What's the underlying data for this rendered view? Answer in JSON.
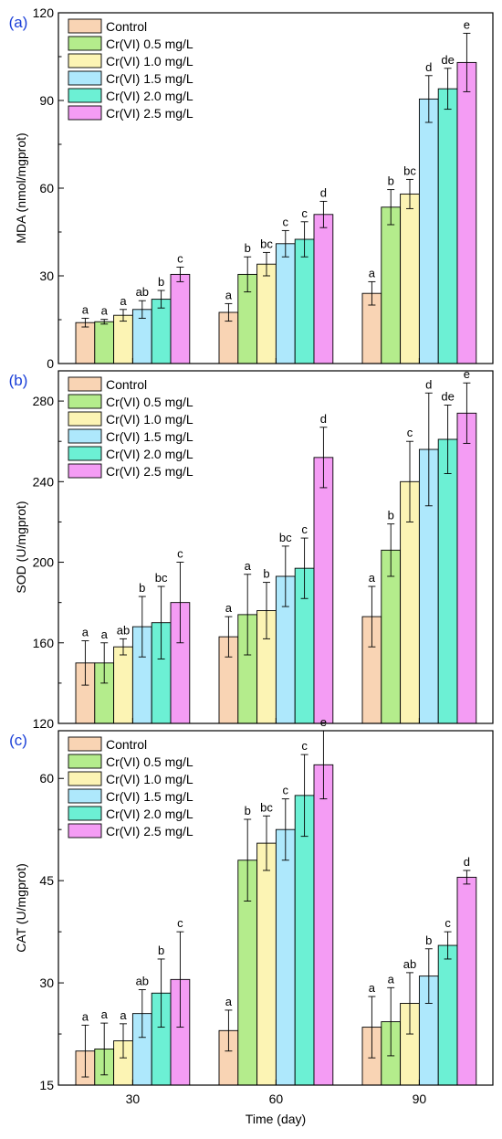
{
  "series_names": [
    "Control",
    "Cr(VI) 0.5 mg/L",
    "Cr(VI) 1.0 mg/L",
    "Cr(VI) 1.5 mg/L",
    "Cr(VI) 2.0 mg/L",
    "Cr(VI) 2.5 mg/L"
  ],
  "series_colors": [
    "#f9d4b4",
    "#b4ec8c",
    "#fcf4b4",
    "#aee8fc",
    "#6cf0d4",
    "#f49cf4"
  ],
  "xlabel": "Time (day)",
  "categories": [
    "30",
    "60",
    "90"
  ],
  "chart_data": [
    {
      "type": "bar",
      "panel_label": "(a)",
      "ylabel": "MDA (nmol/mgprot)",
      "ylim": [
        0,
        120
      ],
      "yticks": [
        "0",
        "30",
        "60",
        "90",
        "120"
      ],
      "categories": [
        "30",
        "60",
        "90"
      ],
      "series": [
        {
          "name": "Control",
          "values": [
            14,
            17.5,
            24
          ],
          "errors": [
            1.5,
            3,
            4
          ],
          "letters": [
            "a",
            "a",
            "a"
          ]
        },
        {
          "name": "Cr(VI) 0.5 mg/L",
          "values": [
            14.3,
            30.5,
            53.5
          ],
          "errors": [
            0.8,
            6,
            6
          ],
          "letters": [
            "a",
            "b",
            "b"
          ]
        },
        {
          "name": "Cr(VI) 1.0 mg/L",
          "values": [
            16.5,
            34,
            58
          ],
          "errors": [
            2,
            4,
            5
          ],
          "letters": [
            "a",
            "bc",
            "bc"
          ]
        },
        {
          "name": "Cr(VI) 1.5 mg/L",
          "values": [
            18.5,
            41,
            90.5
          ],
          "errors": [
            3,
            4.5,
            8
          ],
          "letters": [
            "ab",
            "c",
            "d"
          ]
        },
        {
          "name": "Cr(VI) 2.0 mg/L",
          "values": [
            22,
            42.5,
            94
          ],
          "errors": [
            3,
            6,
            7
          ],
          "letters": [
            "b",
            "c",
            "de"
          ]
        },
        {
          "name": "Cr(VI) 2.5 mg/L",
          "values": [
            30.5,
            51,
            103
          ],
          "errors": [
            2.5,
            4.5,
            10
          ],
          "letters": [
            "c",
            "d",
            "e"
          ]
        }
      ]
    },
    {
      "type": "bar",
      "panel_label": "(b)",
      "ylabel": "SOD (U/mgprot)",
      "ylim": [
        120,
        295
      ],
      "yticks": [
        "120",
        "160",
        "200",
        "240",
        "280"
      ],
      "categories": [
        "30",
        "60",
        "90"
      ],
      "series": [
        {
          "name": "Control",
          "values": [
            150,
            163,
            173
          ],
          "errors": [
            11,
            10,
            15
          ],
          "letters": [
            "a",
            "a",
            "a"
          ]
        },
        {
          "name": "Cr(VI) 0.5 mg/L",
          "values": [
            150,
            174,
            206
          ],
          "errors": [
            10,
            20,
            13
          ],
          "letters": [
            "a",
            "a",
            "b"
          ]
        },
        {
          "name": "Cr(VI) 1.0 mg/L",
          "values": [
            158,
            176,
            240
          ],
          "errors": [
            4,
            14,
            20
          ],
          "letters": [
            "ab",
            "b",
            "c"
          ]
        },
        {
          "name": "Cr(VI) 1.5 mg/L",
          "values": [
            168,
            193,
            256
          ],
          "errors": [
            15,
            15,
            28
          ],
          "letters": [
            "b",
            "bc",
            "d"
          ]
        },
        {
          "name": "Cr(VI) 2.0 mg/L",
          "values": [
            170,
            197,
            261
          ],
          "errors": [
            18,
            15,
            17
          ],
          "letters": [
            "bc",
            "c",
            "de"
          ]
        },
        {
          "name": "Cr(VI) 2.5 mg/L",
          "values": [
            180,
            252,
            274
          ],
          "errors": [
            20,
            15,
            15
          ],
          "letters": [
            "c",
            "d",
            "e"
          ]
        }
      ]
    },
    {
      "type": "bar",
      "panel_label": "(c)",
      "ylabel": "CAT (U/mgprot)",
      "ylim": [
        15,
        67
      ],
      "yticks": [
        "15",
        "30",
        "45",
        "60"
      ],
      "categories": [
        "30",
        "60",
        "90"
      ],
      "series": [
        {
          "name": "Control",
          "values": [
            20,
            23,
            23.5
          ],
          "errors": [
            3.8,
            3,
            4.5
          ],
          "letters": [
            "a",
            "a",
            "a"
          ]
        },
        {
          "name": "Cr(VI) 0.5 mg/L",
          "values": [
            20.3,
            48,
            24.3
          ],
          "errors": [
            3.8,
            6,
            5
          ],
          "letters": [
            "a",
            "b",
            "a"
          ]
        },
        {
          "name": "Cr(VI) 1.0 mg/L",
          "values": [
            21.5,
            50.5,
            27
          ],
          "errors": [
            2.5,
            4,
            4.5
          ],
          "letters": [
            "a",
            "bc",
            "ab"
          ]
        },
        {
          "name": "Cr(VI) 1.5 mg/L",
          "values": [
            25.5,
            52.5,
            31
          ],
          "errors": [
            3.5,
            4.5,
            4
          ],
          "letters": [
            "ab",
            "c",
            "b"
          ]
        },
        {
          "name": "Cr(VI) 2.0 mg/L",
          "values": [
            28.5,
            57.5,
            35.5
          ],
          "errors": [
            5,
            6,
            2
          ],
          "letters": [
            "b",
            "c",
            "c"
          ]
        },
        {
          "name": "Cr(VI) 2.5 mg/L",
          "values": [
            30.5,
            62,
            45.5
          ],
          "errors": [
            7,
            5,
            1
          ],
          "letters": [
            "c",
            "e",
            "d"
          ]
        }
      ]
    }
  ]
}
